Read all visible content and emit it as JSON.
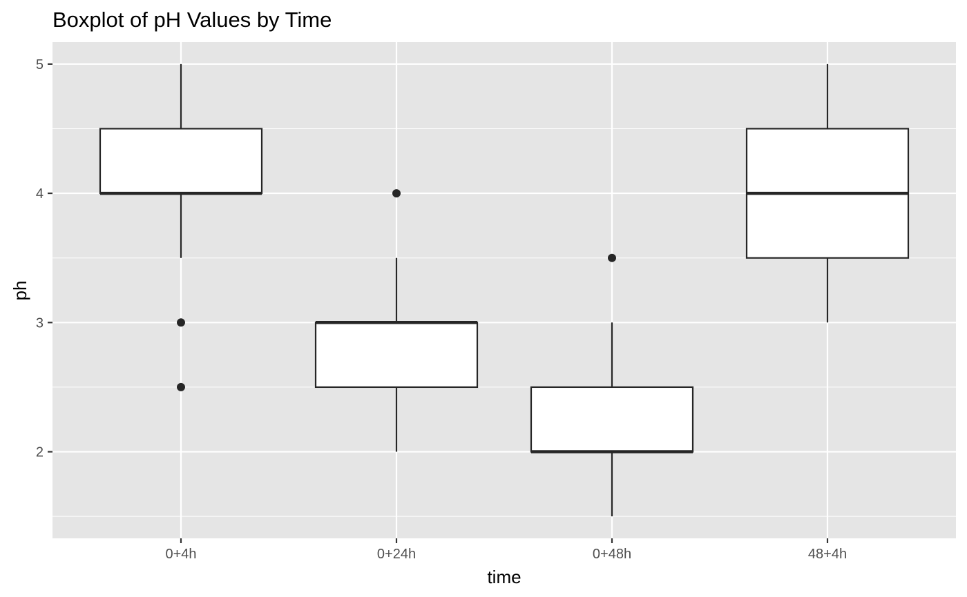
{
  "chart_data": {
    "type": "boxplot",
    "title": "Boxplot of pH Values by Time",
    "xlabel": "time",
    "ylabel": "ph",
    "categories": [
      "0+4h",
      "0+24h",
      "0+48h",
      "48+4h"
    ],
    "ylim": [
      1.33,
      5.17
    ],
    "yticks": [
      2,
      3,
      4,
      5
    ],
    "ytick_labels": [
      "2",
      "3",
      "4",
      "5"
    ],
    "grid": true,
    "boxes": [
      {
        "category": "0+4h",
        "whisker_low": 3.5,
        "q1": 4.0,
        "median": 4.0,
        "q3": 4.5,
        "whisker_high": 5.0,
        "outliers": [
          3.0,
          2.5
        ]
      },
      {
        "category": "0+24h",
        "whisker_low": 2.0,
        "q1": 2.5,
        "median": 3.0,
        "q3": 3.0,
        "whisker_high": 3.5,
        "outliers": [
          4.0
        ]
      },
      {
        "category": "0+48h",
        "whisker_low": 1.5,
        "q1": 2.0,
        "median": 2.0,
        "q3": 2.5,
        "whisker_high": 3.0,
        "outliers": [
          3.5
        ]
      },
      {
        "category": "48+4h",
        "whisker_low": 3.0,
        "q1": 3.5,
        "median": 4.0,
        "q3": 4.5,
        "whisker_high": 5.0,
        "outliers": []
      }
    ],
    "colors": {
      "panel_background": "#e5e5e5",
      "grid_line": "#ffffff",
      "box_fill": "#ffffff",
      "box_stroke": "#262626",
      "tick_text": "#4d4d4d",
      "tick_mark": "#333333"
    }
  }
}
